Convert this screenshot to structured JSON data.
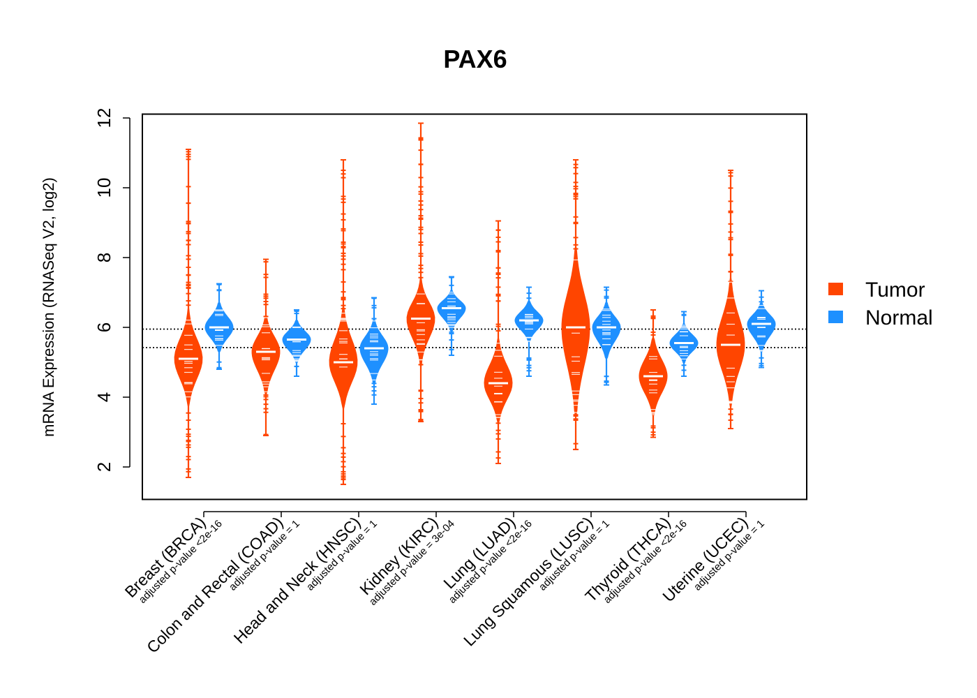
{
  "chart_data": {
    "type": "violin",
    "title": "PAX6",
    "xlabel": "",
    "ylabel": "mRNA Expression (RNASeq V2, log2)",
    "ylim": [
      1.1,
      12.1
    ],
    "yticks": [
      2,
      4,
      6,
      8,
      10,
      12
    ],
    "reference_lines": [
      5.95,
      5.42
    ],
    "categories": [
      "Breast (BRCA)",
      "Colon and Rectal (COAD)",
      "Head and Neck (HNSC)",
      "Kidney (KIRC)",
      "Lung (LUAD)",
      "Lung Squamous (LUSC)",
      "Thyroid (THCA)",
      "Uterine (UCEC)"
    ],
    "pvalue_labels": [
      "adjusted p-value <2e-16",
      "adjusted p-value = 1",
      "adjusted p-value = 1",
      "adjusted p-value = 3e-04",
      "adjusted p-value <2e-16",
      "adjusted p-value = 1",
      "adjusted p-value <2e-16",
      "adjusted p-value = 1"
    ],
    "series": [
      {
        "name": "Tumor",
        "color": "#FF4500",
        "median": [
          5.1,
          5.3,
          5.0,
          6.25,
          4.4,
          6.0,
          4.6,
          5.5
        ],
        "min": [
          1.7,
          2.9,
          1.5,
          3.3,
          2.1,
          2.5,
          2.85,
          3.1
        ],
        "max": [
          11.1,
          7.95,
          10.8,
          11.85,
          9.05,
          10.8,
          6.5,
          10.5
        ],
        "core_low": [
          3.8,
          4.1,
          3.7,
          5.0,
          3.3,
          3.5,
          3.5,
          3.8
        ],
        "core_high": [
          6.4,
          6.3,
          6.5,
          7.3,
          5.6,
          8.2,
          5.7,
          7.3
        ]
      },
      {
        "name": "Normal",
        "color": "#1E90FF",
        "median": [
          6.0,
          5.65,
          5.4,
          6.55,
          6.2,
          6.0,
          5.55,
          6.1
        ],
        "min": [
          4.8,
          4.6,
          3.8,
          5.2,
          4.6,
          4.35,
          4.6,
          4.85
        ],
        "max": [
          7.25,
          6.5,
          6.85,
          7.45,
          7.15,
          7.15,
          6.45,
          7.05
        ],
        "core_low": [
          5.3,
          5.0,
          4.4,
          5.9,
          5.6,
          5.1,
          5.0,
          5.3
        ],
        "core_high": [
          6.7,
          6.2,
          6.2,
          7.05,
          6.75,
          6.7,
          6.1,
          6.7
        ]
      }
    ],
    "legend": {
      "position": "right",
      "entries": [
        "Tumor",
        "Normal"
      ]
    }
  }
}
